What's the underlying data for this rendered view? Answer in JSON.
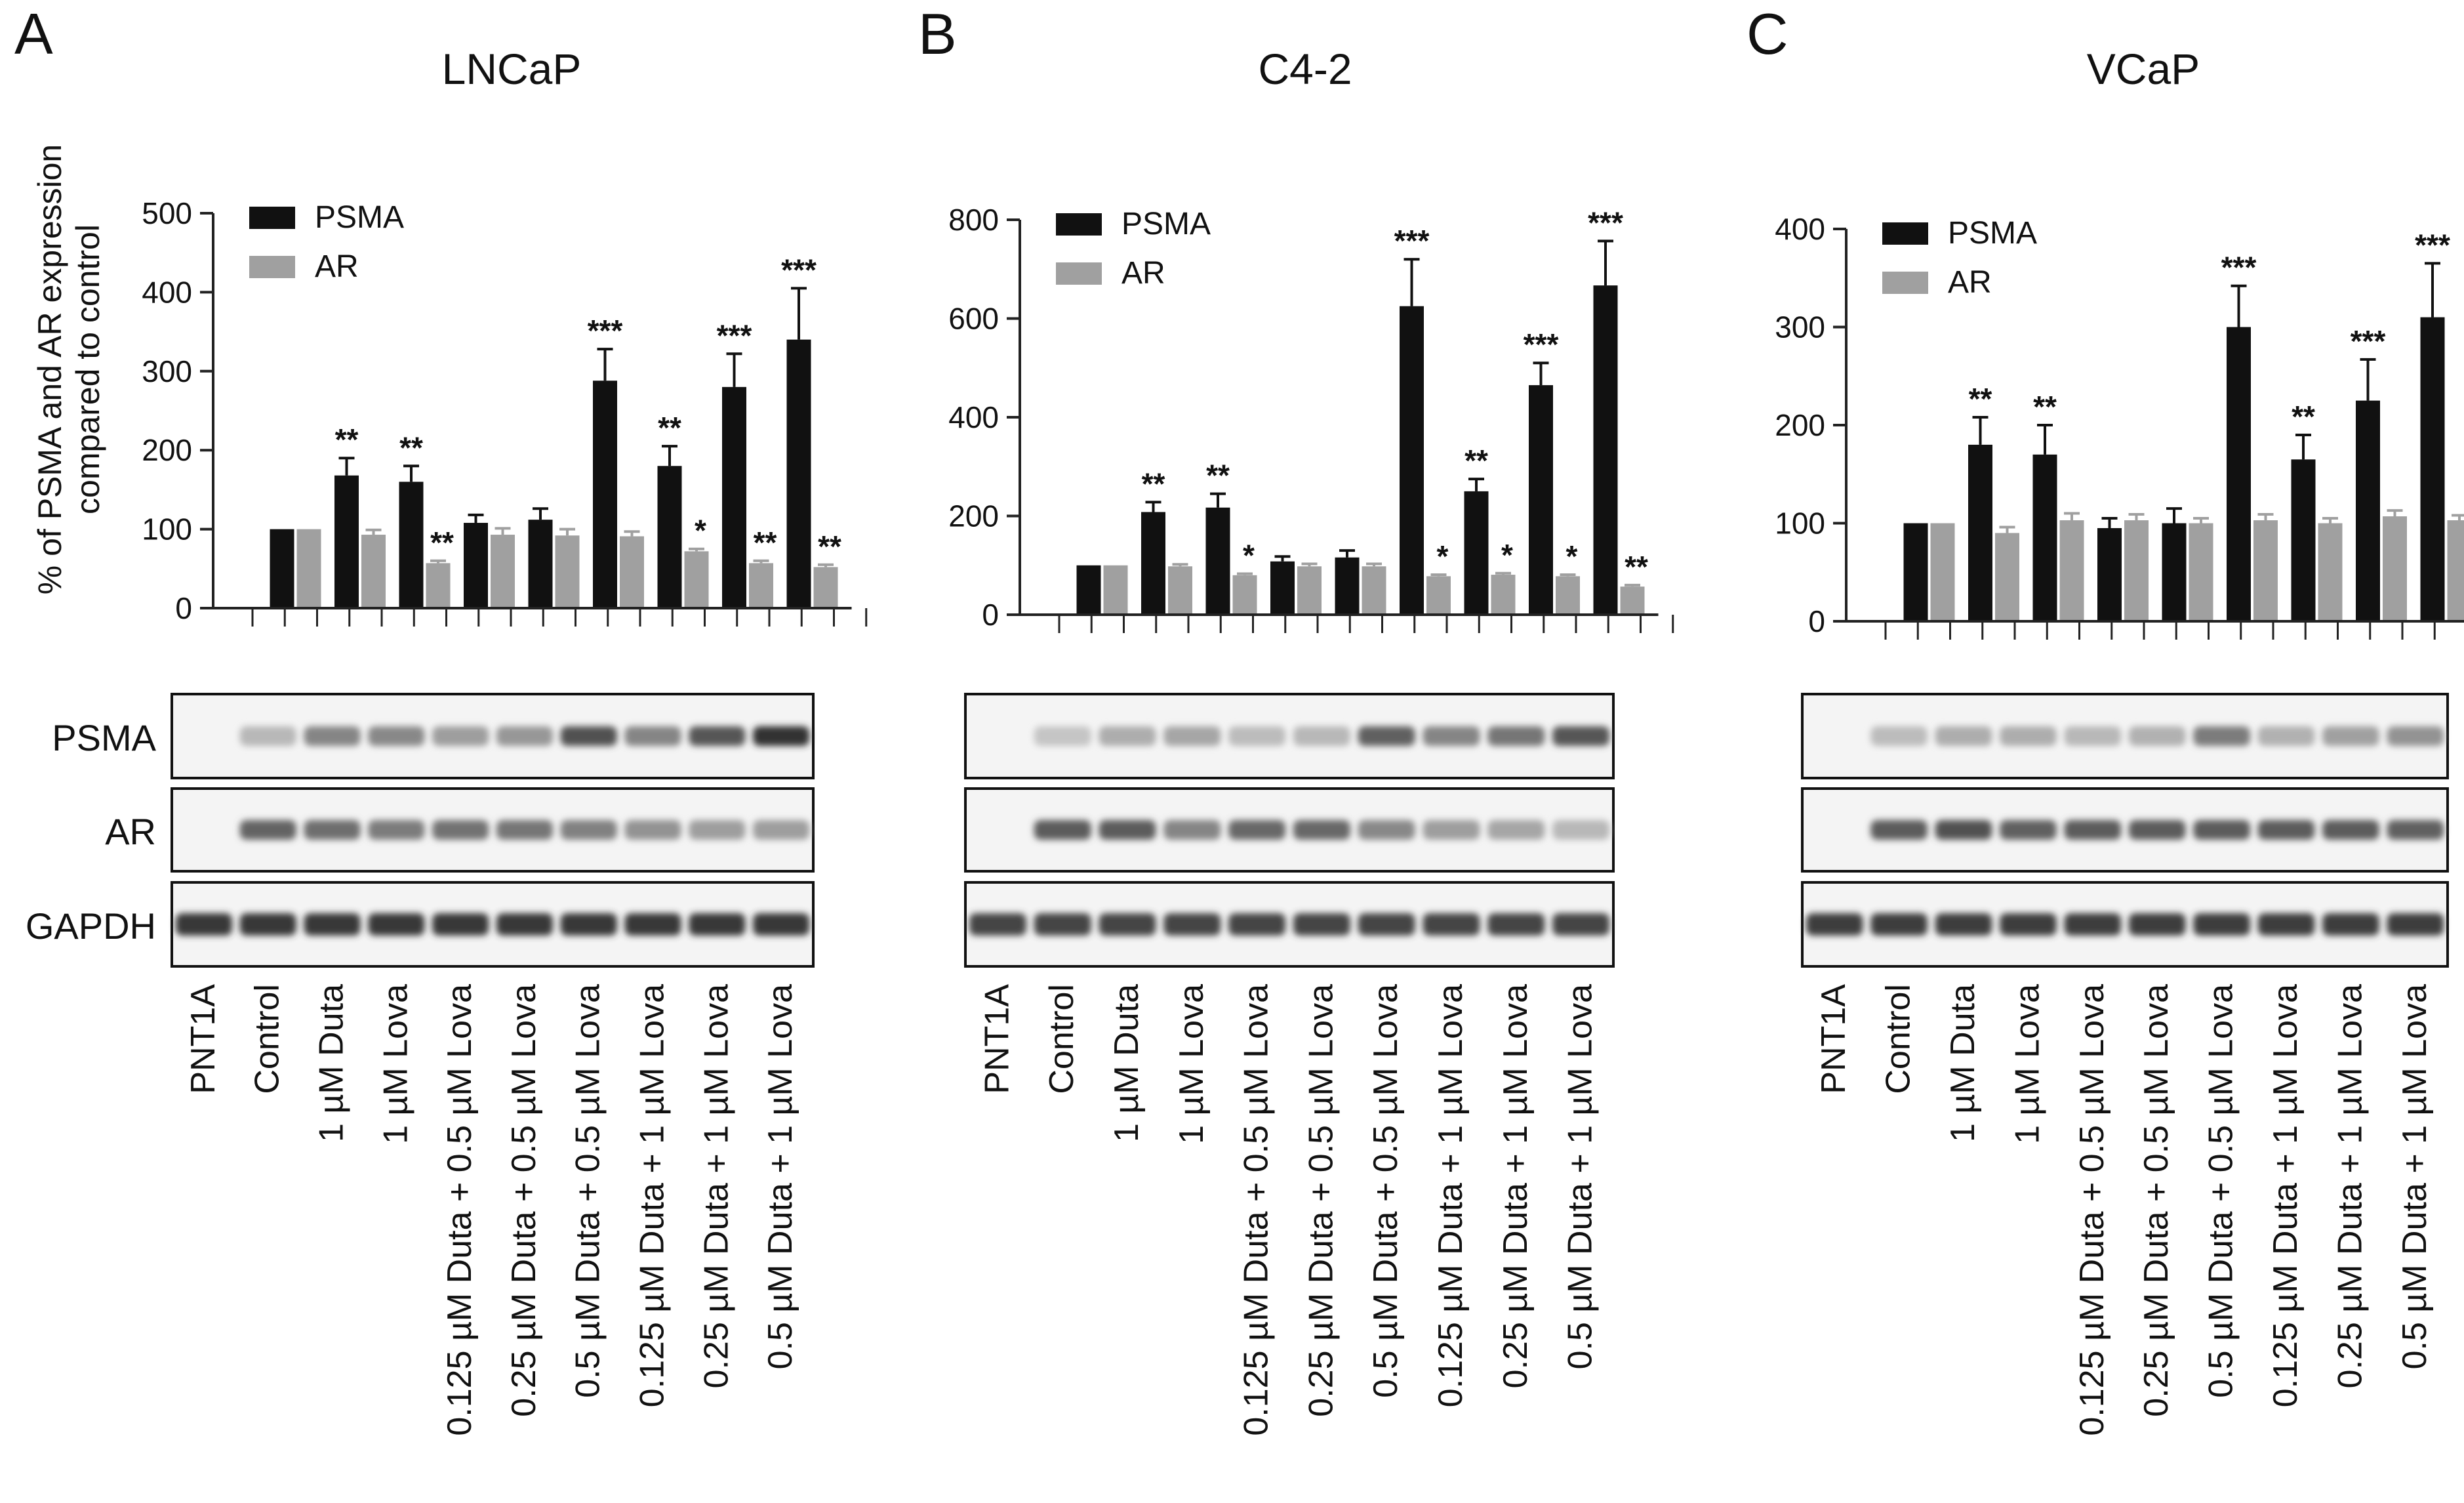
{
  "figure": {
    "ylabel_line1": "% of PSMA and AR expression",
    "ylabel_line2": "compared to control",
    "blot_labels": [
      "PSMA",
      "AR",
      "GAPDH"
    ],
    "lane_labels": [
      "PNT1A",
      "Control",
      "1 µM Duta",
      "1 µM Lova",
      "0.125 µM Duta + 0.5 µM Lova",
      "0.25 µM Duta + 0.5 µM Lova",
      "0.5 µM Duta + 0.5 µM Lova",
      "0.125 µM Duta + 1 µM Lova",
      "0.25 µM Duta + 1 µM Lova",
      "0.5 µM Duta + 1 µM Lova"
    ]
  },
  "colors": {
    "psma": "#111111",
    "ar": "#a0a0a0",
    "axis": "#222222"
  },
  "chart_data": [
    {
      "panel_letter": "A",
      "type": "bar",
      "title": "LNCaP",
      "xlabel": "",
      "ylabel": "% of PSMA and AR expression compared to control",
      "ylim": [
        0,
        500
      ],
      "yticks": [
        0,
        100,
        200,
        300,
        400,
        500
      ],
      "ytick_labels": [
        "0",
        "100",
        "200",
        "300",
        "400",
        "500"
      ],
      "grid": false,
      "legend": "top-left",
      "categories": [
        "Control",
        "1 µM Duta",
        "1 µM Lova",
        "0.125 µM Duta + 0.5 µM Lova",
        "0.25 µM Duta + 0.5 µM Lova",
        "0.5 µM Duta + 0.5 µM Lova",
        "0.125 µM Duta + 1 µM Lova",
        "0.25 µM Duta + 1 µM Lova",
        "0.5 µM Duta + 1 µM Lova"
      ],
      "series": [
        {
          "name": "PSMA",
          "values": [
            100,
            168,
            160,
            108,
            112,
            288,
            180,
            280,
            340
          ],
          "errors": [
            0,
            22,
            20,
            10,
            14,
            40,
            25,
            42,
            65
          ],
          "annotations": [
            "",
            "**",
            "**",
            "",
            "",
            "***",
            "**",
            "***",
            "***"
          ]
        },
        {
          "name": "AR",
          "values": [
            100,
            93,
            57,
            93,
            92,
            91,
            72,
            57,
            52
          ],
          "errors": [
            0,
            6,
            3,
            8,
            8,
            6,
            3,
            3,
            3
          ],
          "annotations": [
            "",
            "",
            "**",
            "",
            "",
            "",
            "*",
            "**",
            "**"
          ]
        }
      ],
      "blot": {
        "PSMA": [
          0,
          0.22,
          0.5,
          0.48,
          0.36,
          0.4,
          0.78,
          0.5,
          0.75,
          0.95
        ],
        "AR": [
          0,
          0.68,
          0.62,
          0.55,
          0.6,
          0.58,
          0.52,
          0.42,
          0.36,
          0.36
        ],
        "GAPDH": [
          0.92,
          0.92,
          0.92,
          0.92,
          0.92,
          0.92,
          0.92,
          0.92,
          0.92,
          0.92
        ]
      }
    },
    {
      "panel_letter": "B",
      "type": "bar",
      "title": "C4-2",
      "xlabel": "",
      "ylabel": "",
      "ylim": [
        0,
        800
      ],
      "yticks": [
        0,
        200,
        400,
        600,
        800
      ],
      "ytick_labels": [
        "0",
        "200",
        "400",
        "600",
        "800"
      ],
      "grid": false,
      "legend": "top-left",
      "categories": [
        "Control",
        "1 µM Duta",
        "1 µM Lova",
        "0.125 µM Duta + 0.5 µM Lova",
        "0.25 µM Duta + 0.5 µM Lova",
        "0.5 µM Duta + 0.5 µM Lova",
        "0.125 µM Duta + 1 µM Lova",
        "0.25 µM Duta + 1 µM Lova",
        "0.5 µM Duta + 1 µM Lova"
      ],
      "series": [
        {
          "name": "PSMA",
          "values": [
            100,
            208,
            217,
            108,
            116,
            625,
            250,
            465,
            667
          ],
          "errors": [
            0,
            20,
            28,
            10,
            14,
            95,
            25,
            45,
            90
          ],
          "annotations": [
            "",
            "**",
            "**",
            "",
            "",
            "***",
            "**",
            "***",
            "***"
          ]
        },
        {
          "name": "AR",
          "values": [
            100,
            98,
            80,
            98,
            98,
            78,
            81,
            78,
            57
          ],
          "errors": [
            0,
            4,
            3,
            5,
            5,
            3,
            3,
            3,
            3
          ],
          "annotations": [
            "",
            "",
            "*",
            "",
            "",
            "*",
            "*",
            "*",
            "**"
          ]
        }
      ],
      "blot": {
        "PSMA": [
          0,
          0.15,
          0.28,
          0.32,
          0.2,
          0.22,
          0.7,
          0.5,
          0.58,
          0.75
        ],
        "AR": [
          0,
          0.72,
          0.72,
          0.5,
          0.66,
          0.66,
          0.48,
          0.36,
          0.32,
          0.22
        ],
        "GAPDH": [
          0.85,
          0.85,
          0.85,
          0.85,
          0.85,
          0.85,
          0.85,
          0.85,
          0.85,
          0.85
        ]
      }
    },
    {
      "panel_letter": "C",
      "type": "bar",
      "title": "VCaP",
      "xlabel": "",
      "ylabel": "",
      "ylim": [
        0,
        400
      ],
      "yticks": [
        0,
        100,
        200,
        300,
        400
      ],
      "ytick_labels": [
        "0",
        "100",
        "200",
        "300",
        "400"
      ],
      "grid": false,
      "legend": "top-left",
      "categories": [
        "Control",
        "1 µM Duta",
        "1 µM Lova",
        "0.125 µM Duta + 0.5 µM Lova",
        "0.25 µM Duta + 0.5 µM Lova",
        "0.5 µM Duta + 0.5 µM Lova",
        "0.125 µM Duta + 1 µM Lova",
        "0.25 µM Duta + 1 µM Lova",
        "0.5 µM Duta + 1 µM Lova"
      ],
      "series": [
        {
          "name": "PSMA",
          "values": [
            100,
            180,
            170,
            95,
            100,
            300,
            165,
            225,
            310
          ],
          "errors": [
            0,
            28,
            30,
            10,
            15,
            42,
            25,
            42,
            55
          ],
          "annotations": [
            "",
            "**",
            "**",
            "",
            "",
            "***",
            "**",
            "***",
            "***"
          ]
        },
        {
          "name": "AR",
          "values": [
            100,
            90,
            103,
            103,
            100,
            103,
            100,
            107,
            103
          ],
          "errors": [
            0,
            6,
            7,
            6,
            5,
            6,
            5,
            6,
            5
          ],
          "annotations": [
            "",
            "",
            "",
            "",
            "",
            "",
            "",
            "",
            ""
          ]
        }
      ],
      "blot": {
        "PSMA": [
          0,
          0.2,
          0.28,
          0.28,
          0.22,
          0.26,
          0.55,
          0.26,
          0.35,
          0.42
        ],
        "AR": [
          0,
          0.72,
          0.78,
          0.7,
          0.72,
          0.72,
          0.72,
          0.72,
          0.72,
          0.7
        ],
        "GAPDH": [
          0.88,
          0.88,
          0.88,
          0.88,
          0.88,
          0.88,
          0.88,
          0.88,
          0.88,
          0.88
        ]
      }
    }
  ]
}
